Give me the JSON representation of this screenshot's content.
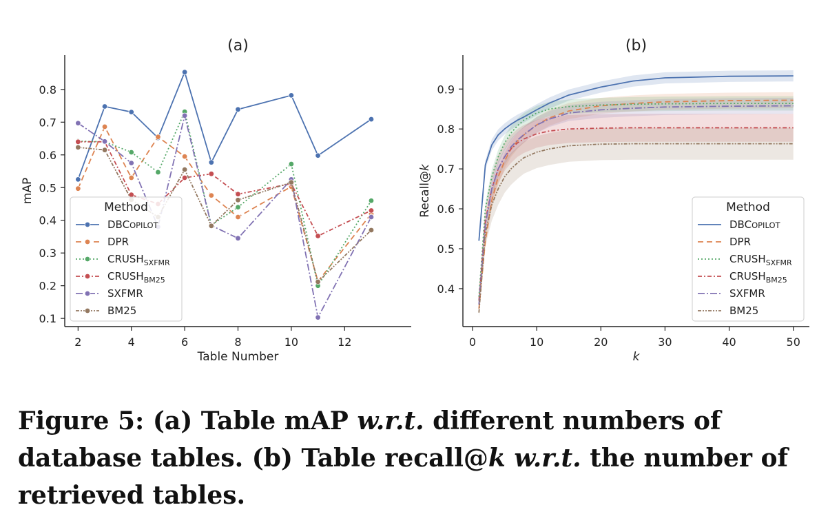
{
  "caption": {
    "part1": "Figure 5: (a) Table mAP ",
    "wrt1": "w.r.t.",
    "part2": " different numbers of database tables. (b) Table recall@",
    "k": "k",
    "part3": " ",
    "wrt2": "w.r.t.",
    "part4": " the number of retrieved tables."
  },
  "chart_data": [
    {
      "type": "line",
      "title": "(a)",
      "xlabel": "Table Number",
      "ylabel": "mAP",
      "xlim": [
        1.5,
        14.5
      ],
      "ylim": [
        0.075,
        0.905
      ],
      "xticks": [
        2,
        4,
        6,
        8,
        10,
        12
      ],
      "yticks": [
        0.1,
        0.2,
        0.3,
        0.4,
        0.5,
        0.6,
        0.7,
        0.8
      ],
      "legend": {
        "title": "Method",
        "placement": "lower-left"
      },
      "x": [
        2,
        3,
        4,
        5,
        6,
        7,
        8,
        10,
        11,
        13
      ],
      "series": [
        {
          "name": "DBCopilot",
          "style": "solid",
          "color": "#4c72b0",
          "values": [
            0.525,
            0.748,
            0.731,
            0.652,
            0.853,
            0.577,
            0.739,
            0.782,
            0.598,
            0.709
          ]
        },
        {
          "name": "DPR",
          "style": "dashed",
          "color": "#dd8452",
          "values": [
            0.497,
            0.686,
            0.53,
            0.655,
            0.595,
            0.476,
            0.41,
            0.503,
            0.213,
            0.42
          ]
        },
        {
          "name": "CRUSH",
          "sub": "SXFMR",
          "style": "dotted",
          "color": "#55a868",
          "values": [
            0.642,
            0.64,
            0.608,
            0.547,
            0.732,
            0.385,
            0.44,
            0.572,
            0.2,
            0.46
          ]
        },
        {
          "name": "CRUSH",
          "sub": "BM25",
          "style": "dashdot",
          "color": "#c44e52",
          "values": [
            0.64,
            0.64,
            0.478,
            0.45,
            0.53,
            0.542,
            0.48,
            0.512,
            0.352,
            0.43
          ]
        },
        {
          "name": "SXFMR",
          "style": "dashdot-long",
          "color": "#8172b3",
          "values": [
            0.697,
            0.641,
            0.575,
            0.38,
            0.72,
            0.384,
            0.345,
            0.525,
            0.103,
            0.41
          ]
        },
        {
          "name": "BM25",
          "style": "dashdotdot",
          "color": "#937860",
          "values": [
            0.623,
            0.615,
            0.463,
            0.41,
            0.555,
            0.383,
            0.462,
            0.516,
            0.212,
            0.37
          ]
        }
      ]
    },
    {
      "type": "line",
      "title": "(b)",
      "xlabel": "k",
      "ylabel": "Recall@k",
      "xlim": [
        -1.5,
        52.5
      ],
      "ylim": [
        0.305,
        0.985
      ],
      "xticks": [
        0,
        10,
        20,
        30,
        40,
        50
      ],
      "yticks": [
        0.4,
        0.5,
        0.6,
        0.7,
        0.8,
        0.9
      ],
      "legend": {
        "title": "Method",
        "placement": "lower-right"
      },
      "x": [
        1,
        2,
        3,
        4,
        5,
        6,
        7,
        8,
        10,
        12,
        15,
        20,
        25,
        30,
        40,
        50
      ],
      "series": [
        {
          "name": "DBCopilot",
          "style": "solid",
          "color": "#4c72b0",
          "values": [
            0.52,
            0.71,
            0.76,
            0.785,
            0.8,
            0.812,
            0.822,
            0.83,
            0.848,
            0.865,
            0.885,
            0.905,
            0.92,
            0.928,
            0.932,
            0.933
          ],
          "band": 0.014
        },
        {
          "name": "DPR",
          "style": "dashed",
          "color": "#dd8452",
          "values": [
            0.35,
            0.52,
            0.62,
            0.68,
            0.72,
            0.75,
            0.77,
            0.785,
            0.81,
            0.828,
            0.845,
            0.858,
            0.864,
            0.868,
            0.871,
            0.872
          ],
          "band": 0.02
        },
        {
          "name": "CRUSH",
          "sub": "SXFMR",
          "style": "dotted",
          "color": "#55a868",
          "values": [
            0.38,
            0.6,
            0.68,
            0.73,
            0.765,
            0.79,
            0.808,
            0.822,
            0.84,
            0.85,
            0.856,
            0.86,
            0.862,
            0.863,
            0.864,
            0.864
          ],
          "band": 0.018
        },
        {
          "name": "CRUSH",
          "sub": "BM25",
          "style": "dashdot",
          "color": "#c44e52",
          "values": [
            0.37,
            0.57,
            0.65,
            0.7,
            0.73,
            0.75,
            0.765,
            0.775,
            0.788,
            0.795,
            0.8,
            0.802,
            0.803,
            0.803,
            0.803,
            0.803
          ],
          "band": 0.035
        },
        {
          "name": "SXFMR",
          "style": "dashdot-long",
          "color": "#8172b3",
          "values": [
            0.36,
            0.56,
            0.65,
            0.7,
            0.73,
            0.755,
            0.772,
            0.786,
            0.81,
            0.825,
            0.84,
            0.848,
            0.852,
            0.855,
            0.857,
            0.858
          ],
          "band": 0.02
        },
        {
          "name": "BM25",
          "style": "dashdotdot",
          "color": "#937860",
          "values": [
            0.34,
            0.54,
            0.61,
            0.65,
            0.68,
            0.7,
            0.715,
            0.728,
            0.742,
            0.75,
            0.758,
            0.762,
            0.763,
            0.763,
            0.763,
            0.763
          ],
          "band": 0.04
        }
      ]
    }
  ]
}
